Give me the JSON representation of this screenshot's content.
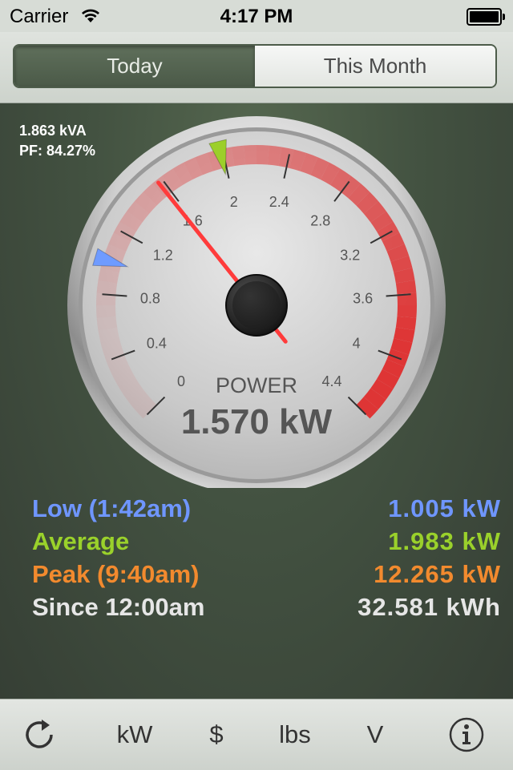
{
  "status_bar": {
    "carrier": "Carrier",
    "time": "4:17 PM"
  },
  "segments": [
    "Today",
    "This Month"
  ],
  "selected_segment": "Today",
  "apparent_power": "1.863 kVA",
  "power_factor": "PF: 84.27%",
  "gauge": {
    "title": "POWER",
    "reading": "1.570 kW",
    "value_kw": 1.57,
    "low_marker_kw": 1.005,
    "average_marker_kw": 1.983,
    "scale_min": 0,
    "scale_max": 4.4,
    "tick_labels": [
      "0",
      "0.4",
      "0.8",
      "1.2",
      "1.6",
      "2",
      "2.4",
      "2.8",
      "3.2",
      "3.6",
      "4",
      "4.4"
    ],
    "colors": {
      "needle": "#ff3b3b",
      "low_marker": "#6f9bff",
      "average_marker": "#9ccf2a",
      "redline": "#e02a2a"
    }
  },
  "stats": [
    {
      "label": "Low (1:42am)",
      "value": "1.005 kW",
      "color": "#6f96ff"
    },
    {
      "label": "Average",
      "value": "1.983 kW",
      "color": "#9ad12b"
    },
    {
      "label": "Peak (9:40am)",
      "value": "12.265 kW",
      "color": "#f28a2e"
    },
    {
      "label": "Since 12:00am",
      "value": "32.581 kWh",
      "color": "#e6e6e6"
    }
  ],
  "tabbar": {
    "refresh_icon": "refresh-icon",
    "items": [
      "kW",
      "$",
      "lbs",
      "V"
    ],
    "info_icon": "info-icon"
  }
}
